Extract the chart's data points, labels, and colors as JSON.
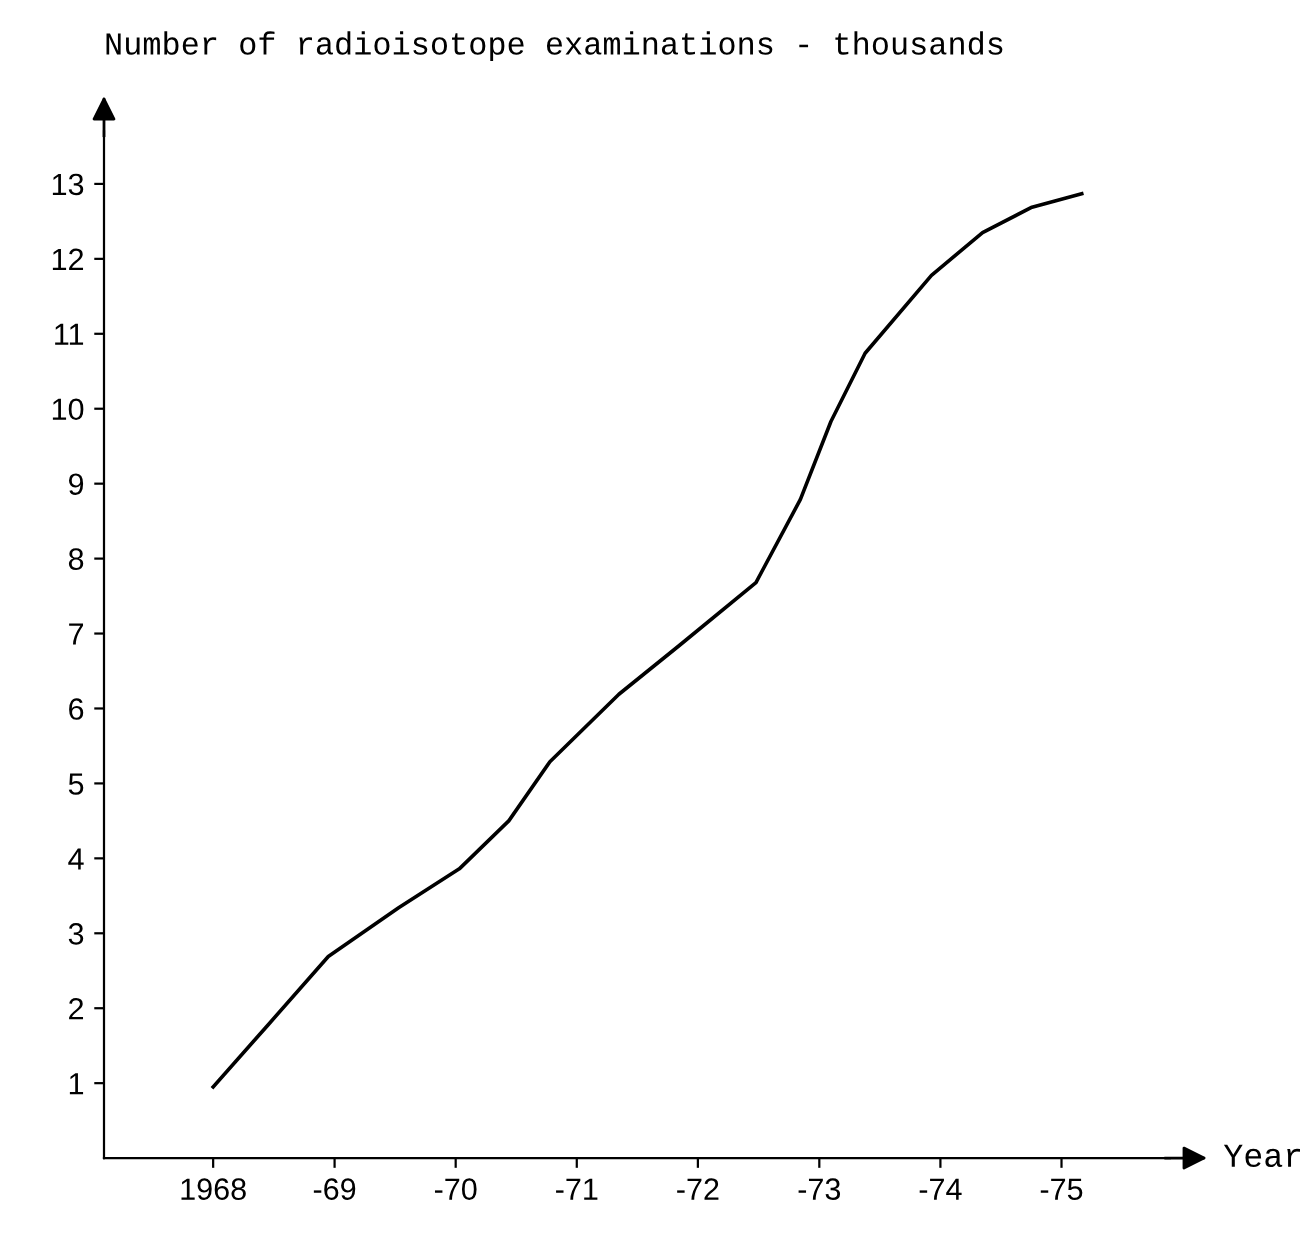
{
  "chart_data": {
    "type": "line",
    "ylabel": "Number of radioisotope examinations - thousands",
    "xlabel": "Year",
    "x": [
      "1968-01-01",
      "1968-06-13",
      "1968-12-13",
      "1969-07-13",
      "1970-01-12",
      "1970-06-10",
      "1970-10-12",
      "1971-05-08",
      "1971-11-06",
      "1972-06-24",
      "1972-11-05",
      "1973-02-05",
      "1973-05-19",
      "1973-12-05",
      "1974-05-08",
      "1974-10-04",
      "1975-03-03"
    ],
    "series": [
      {
        "color": "#000000",
        "values": [
          0.95,
          1.77,
          2.69,
          3.34,
          3.86,
          4.5,
          5.29,
          6.19,
          6.84,
          7.68,
          8.79,
          9.83,
          10.74,
          11.78,
          12.35,
          12.69,
          12.87
        ]
      }
    ],
    "xlim": [
      "1967-02-06",
      "1975-11-24"
    ],
    "ylim": [
      0,
      13.7
    ],
    "xticks": [
      {
        "value": "1968",
        "label": "1968"
      },
      {
        "value": "1969",
        "label": "-69"
      },
      {
        "value": "1970",
        "label": "-70"
      },
      {
        "value": "1971",
        "label": "-71"
      },
      {
        "value": "1972",
        "label": "-72"
      },
      {
        "value": "1973",
        "label": "-73"
      },
      {
        "value": "1974",
        "label": "-74"
      },
      {
        "value": "1975",
        "label": "-75"
      }
    ],
    "yticks": [
      1,
      2,
      3,
      4,
      5,
      6,
      7,
      8,
      9,
      10,
      11,
      12,
      13
    ],
    "grid": false,
    "legend": false,
    "marker": "none",
    "line_style": "solid"
  }
}
